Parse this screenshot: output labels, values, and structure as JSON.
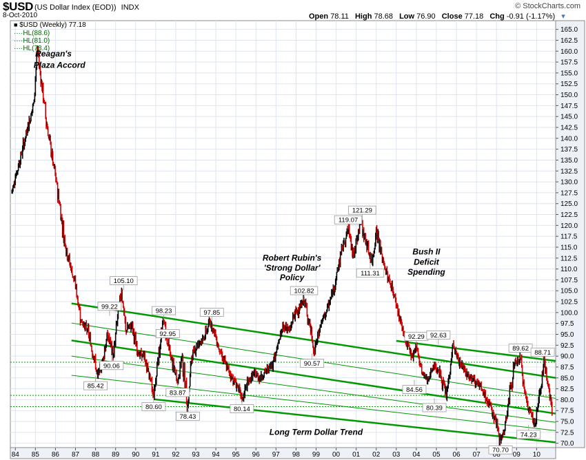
{
  "header": {
    "symbol": "$USD",
    "description": "(US Dollar Index (EOD))",
    "exchange": "INDX",
    "date": "8-Oct-2010",
    "open_label": "Open",
    "open": "78.11",
    "high_label": "High",
    "high": "78.68",
    "low_label": "Low",
    "low": "76.90",
    "close_label": "Close",
    "close": "77.18",
    "chg_label": "Chg",
    "chg": "-0.91 (-1.17%)",
    "watermark": "© StockCharts.com"
  },
  "legend": {
    "main": "$USD (Weekly) 77.18",
    "hl1": "HL(88.6)",
    "hl2": "HL(81.0)",
    "hl3": "HL(78.4)"
  },
  "colors": {
    "up": "#000000",
    "down": "#cc0000",
    "trend": "#009900",
    "grid": "#dde4ef",
    "hl": "#009900",
    "axis_bg": "#eef2f8"
  },
  "chart_data": {
    "type": "line",
    "title": "$USD (Weekly) 77.18",
    "xlabel": "",
    "ylabel": "",
    "grid": true,
    "ylim": [
      69,
      167
    ],
    "x_tick_labels": [
      "84",
      "85",
      "86",
      "87",
      "88",
      "89",
      "90",
      "91",
      "92",
      "93",
      "94",
      "95",
      "96",
      "97",
      "98",
      "99",
      "00",
      "01",
      "02",
      "03",
      "04",
      "05",
      "06",
      "07",
      "08",
      "09",
      "10"
    ],
    "x_tick_values": [
      1984,
      1985,
      1986,
      1987,
      1988,
      1989,
      1990,
      1991,
      1992,
      1993,
      1994,
      1995,
      1996,
      1997,
      1998,
      1999,
      2000,
      2001,
      2002,
      2003,
      2004,
      2005,
      2006,
      2007,
      2008,
      2009,
      2010
    ],
    "y_ticks": [
      70.0,
      72.5,
      75.0,
      77.5,
      80.0,
      82.5,
      85.0,
      87.5,
      90.0,
      92.5,
      95.0,
      97.5,
      100.0,
      102.5,
      105.0,
      107.5,
      110.0,
      112.5,
      115.0,
      117.5,
      120.0,
      122.5,
      125.0,
      127.5,
      130.0,
      132.5,
      135.0,
      137.5,
      140.0,
      142.5,
      145.0,
      147.5,
      150.0,
      152.5,
      155.0,
      157.5,
      160.0,
      162.5,
      165.0
    ],
    "series": [
      {
        "name": "$USD (Weekly) 77.18",
        "x": [
          1983.8,
          1984.0,
          1984.3,
          1984.6,
          1984.9,
          1985.1,
          1985.3,
          1985.6,
          1985.9,
          1986.2,
          1986.5,
          1986.8,
          1987.0,
          1987.3,
          1987.6,
          1987.9,
          1988.1,
          1988.3,
          1988.6,
          1988.9,
          1989.1,
          1989.3,
          1989.5,
          1989.8,
          1990.1,
          1990.4,
          1990.7,
          1990.9,
          1991.1,
          1991.4,
          1991.6,
          1991.9,
          1992.1,
          1992.3,
          1992.6,
          1992.8,
          1993.1,
          1993.4,
          1993.7,
          1993.9,
          1994.2,
          1994.5,
          1994.8,
          1995.1,
          1995.3,
          1995.6,
          1995.9,
          1996.2,
          1996.5,
          1996.8,
          1997.1,
          1997.4,
          1997.7,
          1997.9,
          1998.2,
          1998.4,
          1998.7,
          1998.9,
          1999.2,
          1999.5,
          1999.8,
          2000.0,
          2000.3,
          2000.6,
          2000.9,
          2001.2,
          2001.5,
          2001.8,
          2002.0,
          2002.3,
          2002.6,
          2002.9,
          2003.2,
          2003.5,
          2003.8,
          2004.0,
          2004.3,
          2004.6,
          2004.9,
          2005.2,
          2005.5,
          2005.8,
          2006.1,
          2006.4,
          2006.7,
          2007.0,
          2007.3,
          2007.6,
          2007.9,
          2008.2,
          2008.4,
          2008.6,
          2008.9,
          2009.2,
          2009.4,
          2009.6,
          2009.9,
          2010.1,
          2010.4,
          2010.6,
          2010.77
        ],
        "values": [
          127.5,
          131.0,
          136.5,
          142.0,
          148.0,
          160.5,
          153.0,
          142.0,
          134.0,
          125.0,
          115.0,
          110.0,
          106.0,
          98.0,
          96.0,
          90.0,
          85.42,
          88.0,
          95.0,
          90.06,
          99.22,
          105.1,
          96.0,
          97.0,
          91.0,
          90.0,
          85.5,
          80.6,
          89.0,
          98.23,
          92.95,
          87.0,
          83.87,
          90.0,
          78.43,
          90.0,
          93.0,
          94.0,
          97.85,
          96.0,
          91.0,
          88.0,
          85.0,
          83.0,
          80.14,
          84.0,
          86.0,
          85.0,
          86.5,
          88.0,
          93.0,
          97.0,
          96.0,
          99.5,
          101.0,
          102.82,
          97.0,
          90.57,
          97.0,
          100.0,
          104.0,
          108.0,
          115.0,
          119.07,
          113.0,
          121.29,
          116.0,
          111.31,
          119.5,
          112.0,
          108.0,
          104.0,
          98.0,
          93.0,
          90.0,
          92.29,
          86.0,
          84.56,
          88.0,
          86.0,
          80.39,
          92.63,
          89.0,
          87.0,
          85.0,
          84.0,
          82.0,
          79.0,
          76.0,
          70.7,
          73.0,
          80.0,
          88.0,
          89.62,
          82.0,
          78.0,
          74.23,
          80.0,
          88.71,
          83.0,
          77.18
        ]
      }
    ],
    "data_labels": [
      {
        "x": 1988.0,
        "y": 85.42,
        "text": "85.42",
        "pos": "below"
      },
      {
        "x": 1988.8,
        "y": 90.06,
        "text": "90.06",
        "pos": "below"
      },
      {
        "x": 1988.7,
        "y": 99.22,
        "text": "99.22",
        "pos": "above"
      },
      {
        "x": 1989.4,
        "y": 105.1,
        "text": "105.10",
        "pos": "above"
      },
      {
        "x": 1990.9,
        "y": 80.6,
        "text": "80.60",
        "pos": "below"
      },
      {
        "x": 1991.4,
        "y": 98.23,
        "text": "98.23",
        "pos": "above"
      },
      {
        "x": 1991.6,
        "y": 92.95,
        "text": "92.95",
        "pos": "above"
      },
      {
        "x": 1992.1,
        "y": 83.87,
        "text": "83.87",
        "pos": "below"
      },
      {
        "x": 1992.6,
        "y": 78.43,
        "text": "78.43",
        "pos": "below"
      },
      {
        "x": 1993.8,
        "y": 97.85,
        "text": "97.85",
        "pos": "above"
      },
      {
        "x": 1995.3,
        "y": 80.14,
        "text": "80.14",
        "pos": "below"
      },
      {
        "x": 1998.4,
        "y": 102.82,
        "text": "102.82",
        "pos": "above"
      },
      {
        "x": 1998.8,
        "y": 90.57,
        "text": "90.57",
        "pos": "below"
      },
      {
        "x": 2000.6,
        "y": 119.07,
        "text": "119.07",
        "pos": "above"
      },
      {
        "x": 2001.3,
        "y": 121.29,
        "text": "121.29",
        "pos": "above"
      },
      {
        "x": 2001.7,
        "y": 111.31,
        "text": "111.31",
        "pos": "below"
      },
      {
        "x": 2004.0,
        "y": 92.29,
        "text": "92.29",
        "pos": "above"
      },
      {
        "x": 2003.9,
        "y": 84.56,
        "text": "84.56",
        "pos": "below"
      },
      {
        "x": 2004.9,
        "y": 80.39,
        "text": "80.39",
        "pos": "below"
      },
      {
        "x": 2005.1,
        "y": 92.63,
        "text": "92.63",
        "pos": "above"
      },
      {
        "x": 2008.2,
        "y": 70.7,
        "text": "70.70",
        "pos": "below"
      },
      {
        "x": 2009.2,
        "y": 89.62,
        "text": "89.62",
        "pos": "above"
      },
      {
        "x": 2009.6,
        "y": 74.23,
        "text": "74.23",
        "pos": "below"
      },
      {
        "x": 2010.3,
        "y": 88.71,
        "text": "88.71",
        "pos": "above"
      }
    ],
    "annotations": [
      {
        "text": "Reagan's",
        "x": 1985.9,
        "y": 158.8
      },
      {
        "text": "Plaza Accord",
        "x": 1986.2,
        "y": 156.2
      },
      {
        "text": "Robert Rubin's",
        "x": 1997.8,
        "y": 111.9
      },
      {
        "text": "'Strong Dollar'",
        "x": 1997.8,
        "y": 109.6
      },
      {
        "text": "Policy",
        "x": 1997.8,
        "y": 107.4
      },
      {
        "text": "Bush II",
        "x": 2004.5,
        "y": 113.3
      },
      {
        "text": "Deficit",
        "x": 2004.5,
        "y": 111.0
      },
      {
        "text": "Spending",
        "x": 2004.5,
        "y": 108.7
      },
      {
        "text": "Long Term Dollar Trend",
        "x": 1999.0,
        "y": 71.9
      }
    ],
    "trend_lines": [
      {
        "x1": 1986.8,
        "y1": 102.1,
        "x2": 2010.95,
        "y2": 85.0,
        "style": "thick"
      },
      {
        "x1": 1986.8,
        "y1": 97.6,
        "x2": 2010.95,
        "y2": 80.3,
        "style": "thin"
      },
      {
        "x1": 1986.8,
        "y1": 93.6,
        "x2": 2010.95,
        "y2": 76.8,
        "style": "thick"
      },
      {
        "x1": 1986.8,
        "y1": 90.0,
        "x2": 2010.95,
        "y2": 74.8,
        "style": "thin"
      },
      {
        "x1": 1986.8,
        "y1": 85.6,
        "x2": 2010.95,
        "y2": 72.9,
        "style": "thin"
      },
      {
        "x1": 1990.9,
        "y1": 80.1,
        "x2": 2010.95,
        "y2": 70.2,
        "style": "thick"
      },
      {
        "x1": 2003.0,
        "y1": 93.5,
        "x2": 2010.95,
        "y2": 88.9,
        "style": "thick"
      }
    ],
    "horizontal_lines": [
      88.6,
      81.0,
      78.4
    ]
  }
}
